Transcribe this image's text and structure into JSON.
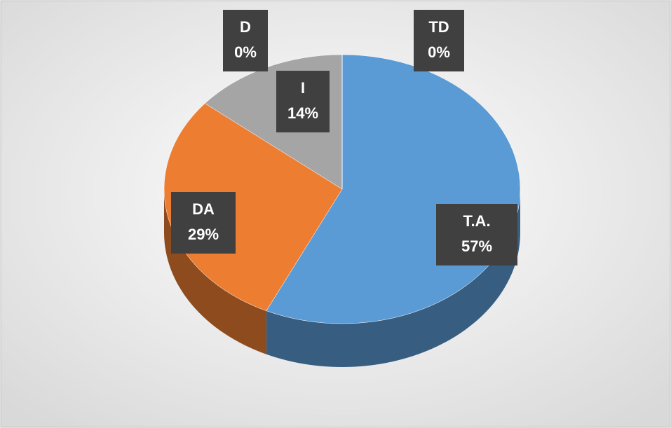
{
  "chart_data": {
    "type": "pie",
    "categories": [
      "T.A.",
      "DA",
      "I",
      "D",
      "TD"
    ],
    "values": [
      57,
      29,
      14,
      0,
      0
    ],
    "value_labels": [
      "57%",
      "29%",
      "14%",
      "0%",
      "0%"
    ],
    "colors": [
      "#5b9bd5",
      "#ed7d31",
      "#a5a5a5",
      "#ffc000",
      "#4472c4"
    ]
  }
}
